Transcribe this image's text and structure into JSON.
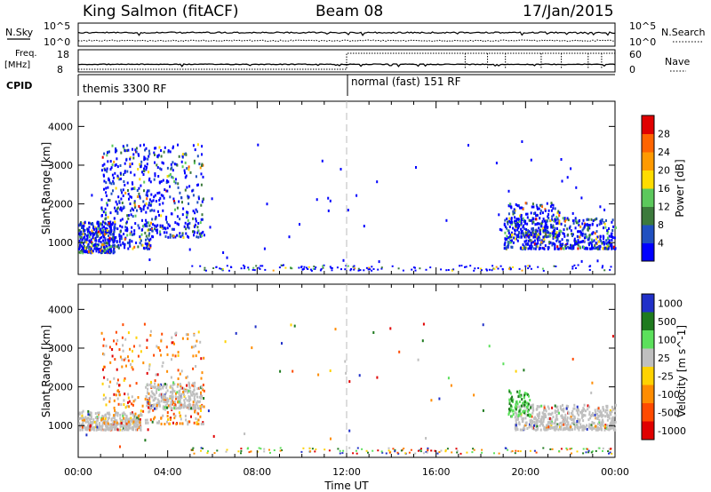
{
  "header": {
    "title": "King Salmon (fitACF)",
    "beam": "Beam 08",
    "date": "17/Jan/2015"
  },
  "status_panel": {
    "nsky_label": "N.Sky",
    "nsearch_label": "N.Search",
    "nsky_ticks": [
      "10^5",
      "10^0"
    ],
    "nsearch_ticks": [
      "10^5",
      "10^0"
    ],
    "freq_label_1": "Freq.",
    "freq_label_2": "[MHz]",
    "freq_ticks": [
      "18",
      "8"
    ],
    "nave_label": "Nave",
    "nave_ticks": [
      "60",
      "0"
    ],
    "cpid_label": "CPID",
    "cpid_segments": [
      {
        "name": "themis 3300 RF",
        "start_hour": 0
      },
      {
        "name": "normal (fast) 151 RF",
        "start_hour": 12
      }
    ]
  },
  "colors": {
    "power_scale": [
      "#0000ff",
      "#2050c0",
      "#3c7a3c",
      "#5cc85c",
      "#ffdc00",
      "#ff9a00",
      "#ff6400",
      "#e00000"
    ],
    "velocity_scale": [
      "#2030c8",
      "#1e7a1e",
      "#5ce05c",
      "#bfbfbf",
      "#ffd200",
      "#ff8c00",
      "#ff4a00",
      "#e00000"
    ],
    "ground_scatter": "#bfbfbf"
  },
  "chart_data": [
    {
      "type": "heatmap",
      "name": "power",
      "ylabel": "Slant Range [km]",
      "yticks": [
        1000,
        2000,
        3000,
        4000
      ],
      "ylim": [
        180,
        4650
      ],
      "xlim_hours": [
        0,
        24
      ],
      "colorbar_label": "Power [dB]",
      "colorbar_ticks": [
        4,
        8,
        12,
        16,
        20,
        24,
        28
      ],
      "colorbar_range": [
        0,
        32
      ],
      "scatter_regions": [
        {
          "t_start": 0.0,
          "t_end": 1.6,
          "range_low": 700,
          "range_high": 1500,
          "peak_db": 20
        },
        {
          "t_start": 1.0,
          "t_end": 3.2,
          "range_low": 800,
          "range_high": 3500,
          "peak_db": 16
        },
        {
          "t_start": 3.2,
          "t_end": 5.6,
          "range_low": 1100,
          "range_high": 3500,
          "peak_db": 14
        },
        {
          "t_start": 19.0,
          "t_end": 24.0,
          "range_low": 800,
          "range_high": 1600,
          "peak_db": 24
        },
        {
          "t_start": 19.2,
          "t_end": 21.5,
          "range_low": 1100,
          "range_high": 2000,
          "peak_db": 12
        }
      ]
    },
    {
      "type": "heatmap",
      "name": "velocity",
      "ylabel": "Slant Range [km]",
      "yticks": [
        1000,
        2000,
        3000,
        4000
      ],
      "ylim": [
        180,
        4650
      ],
      "xlim_hours": [
        0,
        24
      ],
      "xlabel": "Time UT",
      "xticks": [
        "00:00",
        "04:00",
        "08:00",
        "12:00",
        "16:00",
        "20:00",
        "00:00"
      ],
      "colorbar_label": "Velocity [m s^-1]",
      "colorbar_ticks": [
        "1000",
        "500",
        "100",
        "25",
        "-25",
        "-100",
        "-500",
        "-1000"
      ],
      "scatter_regions": [
        {
          "t_start": 0.0,
          "t_end": 2.8,
          "range_low": 850,
          "range_high": 1300,
          "dominant": "ground"
        },
        {
          "t_start": 1.0,
          "t_end": 5.6,
          "range_low": 1000,
          "range_high": 3400,
          "dominant": "negative"
        },
        {
          "t_start": 3.0,
          "t_end": 5.5,
          "range_low": 1400,
          "range_high": 2100,
          "dominant": "ground"
        },
        {
          "t_start": 19.5,
          "t_end": 24.0,
          "range_low": 850,
          "range_high": 1500,
          "dominant": "ground"
        },
        {
          "t_start": 19.2,
          "t_end": 20.2,
          "range_low": 1200,
          "range_high": 1900,
          "dominant": "positive"
        }
      ]
    }
  ]
}
